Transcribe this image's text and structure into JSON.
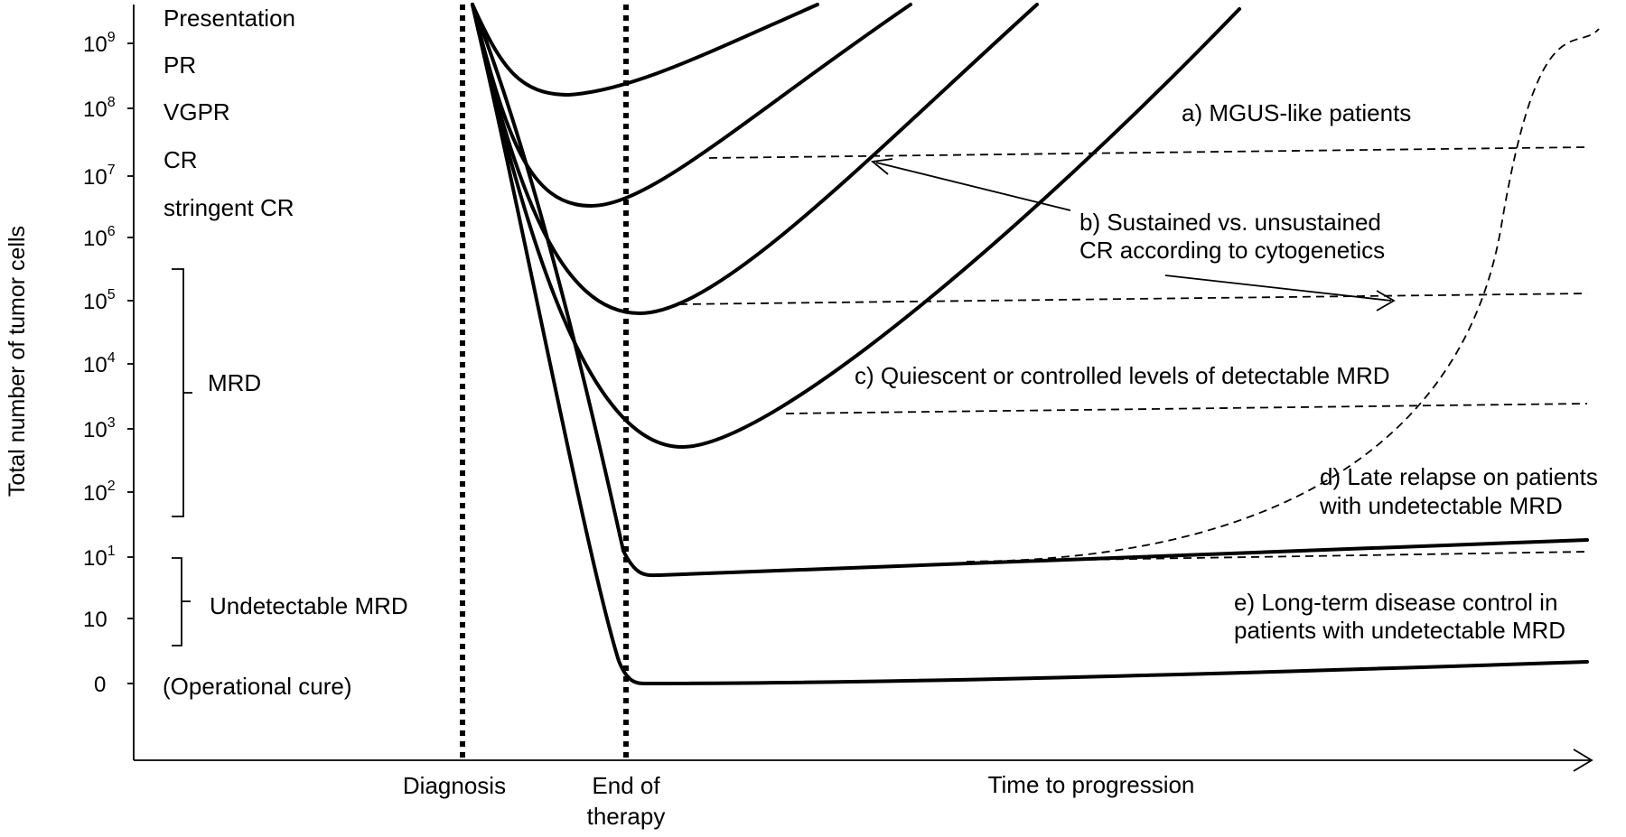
{
  "y_axis": {
    "label": "Total number of tumor cells",
    "ticks": [
      {
        "base": "10",
        "exp": "9"
      },
      {
        "base": "10",
        "exp": "8"
      },
      {
        "base": "10",
        "exp": "7"
      },
      {
        "base": "10",
        "exp": "6"
      },
      {
        "base": "10",
        "exp": "5"
      },
      {
        "base": "10",
        "exp": "4"
      },
      {
        "base": "10",
        "exp": "3"
      },
      {
        "base": "10",
        "exp": "2"
      },
      {
        "base": "10",
        "exp": "1"
      },
      {
        "base": "10",
        "exp": ""
      },
      {
        "base": "0",
        "exp": ""
      }
    ]
  },
  "response_levels": [
    "Presentation",
    "PR",
    "VGPR",
    "CR",
    "stringent CR"
  ],
  "brackets": {
    "mrd": "MRD",
    "undetectable_mrd": "Undetectable MRD",
    "operational_cure": "(Operational cure)"
  },
  "x_axis": {
    "diagnosis": "Diagnosis",
    "end_of_therapy_line1": "End of",
    "end_of_therapy_line2": "therapy",
    "time_to_progression": "Time to progression"
  },
  "annotations": {
    "a": "a) MGUS-like patients",
    "b_line1": "b) Sustained vs. unsustained",
    "b_line2": "CR according to cytogenetics",
    "c": "c) Quiescent or controlled levels of detectable MRD",
    "d_line1": "d) Late relapse on patients",
    "d_line2": "with undetectable MRD",
    "e_line1": "e) Long-term disease control in",
    "e_line2": "patients with undetectable MRD"
  }
}
